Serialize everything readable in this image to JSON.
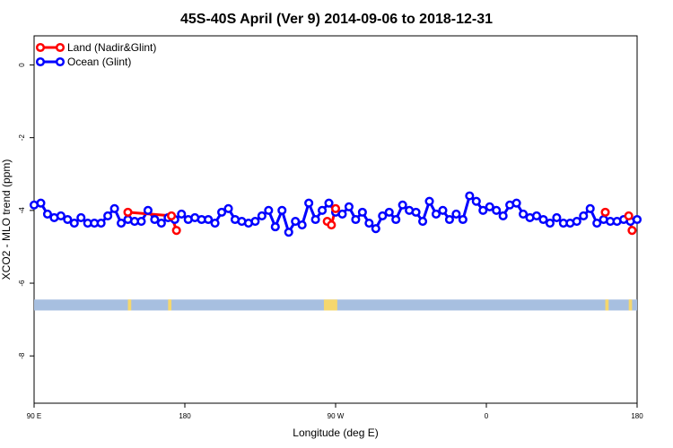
{
  "chart_data": {
    "type": "line",
    "title": "45S-40S April (Ver 9)   2014-09-06 to 2018-12-31",
    "xlabel": "Longitude (deg E)",
    "ylabel": "XCO2 - MLO trend (ppm)",
    "xlim": [
      90,
      450
    ],
    "ylim": [
      -9.3,
      0.8
    ],
    "x_ticks": [
      {
        "value": 90,
        "label": "90 E"
      },
      {
        "value": 180,
        "label": "180"
      },
      {
        "value": 270,
        "label": "90 W"
      },
      {
        "value": 360,
        "label": "0"
      },
      {
        "value": 450,
        "label": "180"
      }
    ],
    "y_ticks": [
      {
        "value": 0,
        "label": "0"
      },
      {
        "value": -2,
        "label": "-2"
      },
      {
        "value": -4,
        "label": "-4"
      },
      {
        "value": -6,
        "label": "-6"
      },
      {
        "value": -8,
        "label": "-8"
      }
    ],
    "grid": false,
    "legend_position": "top-left",
    "series": [
      {
        "name": "Land (Nadir&Glint)",
        "color": "#ff0000",
        "segments": [
          [
            [
              146,
              -4.05
            ],
            [
              172,
              -4.15
            ],
            [
              175,
              -4.55
            ]
          ],
          [
            [
              265,
              -4.3
            ],
            [
              267.5,
              -4.4
            ],
            [
              270,
              -3.95
            ]
          ],
          [
            [
              431,
              -4.05
            ]
          ],
          [
            [
              445,
              -4.15
            ],
            [
              447,
              -4.55
            ]
          ]
        ]
      },
      {
        "name": "Ocean (Glint)",
        "color": "#0000ff",
        "x": [
          90,
          94,
          98,
          102,
          106,
          110,
          114,
          118,
          122,
          126,
          130,
          134,
          138,
          142,
          146,
          150,
          154,
          158,
          162,
          166,
          170,
          174,
          178,
          182,
          186,
          190,
          194,
          198,
          202,
          206,
          210,
          214,
          218,
          222,
          226,
          230,
          234,
          238,
          242,
          246,
          250,
          254,
          258,
          262,
          266,
          270,
          274,
          278,
          282,
          286,
          290,
          294,
          298,
          302,
          306,
          310,
          314,
          318,
          322,
          326,
          330,
          334,
          338,
          342,
          346,
          350,
          354,
          358,
          362,
          366,
          370,
          374,
          378,
          382,
          386,
          390,
          394,
          398,
          402,
          406,
          410,
          414,
          418,
          422,
          426,
          430,
          434,
          438,
          442,
          446,
          450
        ],
        "values": [
          -3.85,
          -3.8,
          -4.1,
          -4.2,
          -4.15,
          -4.25,
          -4.35,
          -4.2,
          -4.35,
          -4.35,
          -4.35,
          -4.15,
          -3.95,
          -4.35,
          -4.25,
          -4.3,
          -4.3,
          -4.0,
          -4.25,
          -4.35,
          -4.2,
          -4.25,
          -4.1,
          -4.25,
          -4.2,
          -4.25,
          -4.25,
          -4.35,
          -4.05,
          -3.95,
          -4.25,
          -4.3,
          -4.35,
          -4.3,
          -4.15,
          -4.0,
          -4.45,
          -4.0,
          -4.6,
          -4.3,
          -4.4,
          -3.8,
          -4.25,
          -4.0,
          -3.8,
          -4.05,
          -4.1,
          -3.9,
          -4.25,
          -4.05,
          -4.35,
          -4.5,
          -4.15,
          -4.05,
          -4.25,
          -3.85,
          -4.0,
          -4.05,
          -4.3,
          -3.75,
          -4.1,
          -4.0,
          -4.25,
          -4.1,
          -4.25,
          -3.6,
          -3.75,
          -4.0,
          -3.9,
          -4.0,
          -4.15,
          -3.85,
          -3.8,
          -4.1,
          -4.2,
          -4.15,
          -4.25,
          -4.35,
          -4.2,
          -4.35,
          -4.35,
          -4.3,
          -4.15,
          -3.95,
          -4.35,
          -4.25,
          -4.3,
          -4.3,
          -4.25,
          -4.3,
          -4.25
        ]
      }
    ],
    "land_mask_bar": {
      "y_range": [
        -6.75,
        -6.45
      ],
      "ocean_color": "#a7bfe0",
      "land_color": "#f5d76e",
      "land_x_ranges": [
        [
          146,
          148
        ],
        [
          170,
          172
        ],
        [
          263,
          271
        ],
        [
          431,
          433
        ],
        [
          445,
          447
        ]
      ]
    }
  }
}
